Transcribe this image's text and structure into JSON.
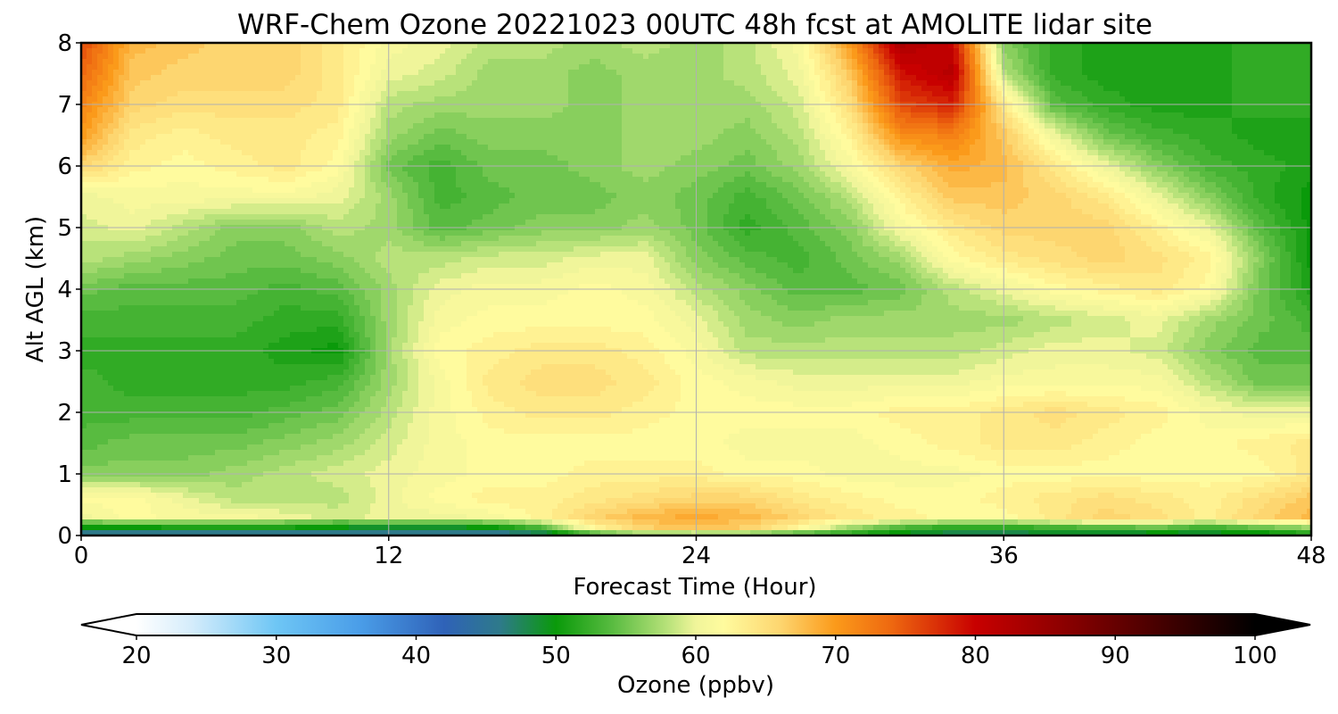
{
  "chart_data": {
    "type": "heatmap",
    "title": "WRF-Chem Ozone  20221023 00UTC 48h fcst at AMOLITE lidar site",
    "xlabel": "Forecast Time (Hour)",
    "ylabel": "Alt AGL (km)",
    "xlim": [
      0,
      48
    ],
    "ylim": [
      0,
      8
    ],
    "x_ticks": [
      0,
      12,
      24,
      36,
      48
    ],
    "y_ticks": [
      0,
      1,
      2,
      3,
      4,
      5,
      6,
      7,
      8
    ],
    "grid": true,
    "x_hours": [
      0,
      2,
      4,
      6,
      8,
      10,
      12,
      14,
      16,
      18,
      20,
      22,
      24,
      26,
      28,
      30,
      32,
      34,
      36,
      38,
      40,
      42,
      44,
      46,
      48
    ],
    "z_levels_km": [
      0.0,
      0.1,
      0.3,
      0.6,
      1.0,
      1.5,
      2.0,
      2.5,
      3.0,
      3.5,
      4.0,
      4.5,
      5.0,
      5.5,
      6.0,
      6.5,
      7.0,
      7.5,
      8.0
    ],
    "ozone_ppbv": [
      [
        44,
        44,
        44,
        44,
        44,
        44,
        45,
        45,
        44,
        45,
        50,
        52,
        52,
        51,
        50,
        50,
        48,
        47,
        47,
        47,
        47,
        47,
        48,
        48,
        50
      ],
      [
        48,
        48,
        49,
        49,
        49,
        48,
        47,
        47,
        48,
        52,
        62,
        66,
        67,
        66,
        62,
        56,
        52,
        50,
        50,
        51,
        52,
        53,
        51,
        53,
        55
      ],
      [
        60,
        62,
        61,
        61,
        60,
        59,
        60,
        60,
        61,
        63,
        66,
        68,
        69,
        68,
        66,
        64,
        63,
        62,
        62,
        64,
        66,
        65,
        63,
        66,
        68
      ],
      [
        62,
        62,
        60,
        58,
        58,
        58,
        60,
        62,
        63,
        63,
        64,
        65,
        66,
        66,
        64,
        63,
        62,
        62,
        63,
        64,
        65,
        64,
        63,
        65,
        67
      ],
      [
        56,
        56,
        56,
        57,
        58,
        59,
        60,
        61,
        62,
        62,
        63,
        63,
        63,
        62,
        62,
        61,
        61,
        61,
        62,
        62,
        62,
        62,
        62,
        62,
        64
      ],
      [
        54,
        55,
        55,
        55,
        56,
        57,
        59,
        61,
        62,
        62,
        62,
        62,
        62,
        61,
        61,
        61,
        62,
        63,
        64,
        64,
        63,
        62,
        62,
        63,
        64
      ],
      [
        53,
        53,
        53,
        53,
        54,
        55,
        58,
        61,
        63,
        64,
        64,
        63,
        62,
        62,
        62,
        62,
        63,
        63,
        64,
        65,
        64,
        63,
        61,
        60,
        60
      ],
      [
        53,
        52,
        52,
        52,
        52,
        53,
        57,
        61,
        64,
        65,
        65,
        64,
        62,
        61,
        60,
        60,
        60,
        60,
        61,
        61,
        61,
        61,
        58,
        55,
        55
      ],
      [
        52,
        52,
        52,
        52,
        51,
        50,
        57,
        62,
        63,
        64,
        64,
        63,
        61,
        58,
        58,
        58,
        58,
        58,
        59,
        60,
        60,
        59,
        56,
        54,
        54
      ],
      [
        53,
        53,
        53,
        53,
        52,
        52,
        57,
        61,
        62,
        62,
        62,
        62,
        60,
        57,
        56,
        57,
        57,
        57,
        57,
        58,
        59,
        60,
        57,
        55,
        53
      ],
      [
        55,
        54,
        54,
        54,
        53,
        54,
        57,
        60,
        61,
        61,
        62,
        61,
        58,
        56,
        54,
        54,
        55,
        58,
        60,
        62,
        63,
        64,
        62,
        55,
        51
      ],
      [
        58,
        57,
        56,
        55,
        55,
        56,
        58,
        58,
        59,
        59,
        60,
        60,
        56,
        54,
        53,
        55,
        57,
        62,
        64,
        65,
        66,
        65,
        63,
        56,
        50
      ],
      [
        59,
        60,
        58,
        56,
        56,
        58,
        57,
        54,
        55,
        56,
        56,
        57,
        55,
        52,
        54,
        56,
        61,
        64,
        66,
        66,
        66,
        63,
        60,
        54,
        50
      ],
      [
        60,
        61,
        61,
        61,
        61,
        60,
        57,
        53,
        54,
        55,
        55,
        56,
        55,
        53,
        55,
        58,
        63,
        67,
        67,
        66,
        64,
        60,
        56,
        52,
        50
      ],
      [
        66,
        63,
        62,
        63,
        64,
        62,
        55,
        53,
        55,
        55,
        56,
        57,
        56,
        55,
        57,
        61,
        66,
        69,
        68,
        64,
        60,
        56,
        53,
        52,
        51
      ],
      [
        70,
        64,
        63,
        64,
        64,
        63,
        57,
        55,
        56,
        56,
        56,
        57,
        57,
        56,
        58,
        63,
        71,
        72,
        67,
        60,
        55,
        53,
        52,
        51,
        51
      ],
      [
        72,
        66,
        65,
        65,
        65,
        64,
        58,
        57,
        57,
        57,
        56,
        57,
        57,
        57,
        59,
        65,
        76,
        78,
        64,
        54,
        52,
        51,
        51,
        52,
        52
      ],
      [
        74,
        67,
        66,
        66,
        66,
        64,
        60,
        59,
        57,
        57,
        56,
        57,
        57,
        58,
        60,
        67,
        79,
        82,
        58,
        52,
        51,
        51,
        51,
        52,
        52
      ],
      [
        76,
        68,
        67,
        66,
        66,
        64,
        61,
        60,
        58,
        58,
        57,
        58,
        57,
        58,
        61,
        70,
        83,
        80,
        56,
        52,
        51,
        51,
        51,
        52,
        52
      ]
    ],
    "colorbar": {
      "label": "Ozone  (ppbv)",
      "min": 20,
      "max": 100,
      "ticks": [
        20,
        30,
        40,
        50,
        60,
        70,
        80,
        90,
        100
      ],
      "extend": "both",
      "stops": [
        {
          "v": 20,
          "c": "#ffffff"
        },
        {
          "v": 24,
          "c": "#d4ecfb"
        },
        {
          "v": 30,
          "c": "#6ec6f5"
        },
        {
          "v": 36,
          "c": "#4a9de8"
        },
        {
          "v": 42,
          "c": "#2f62b8"
        },
        {
          "v": 46,
          "c": "#2e7a8a"
        },
        {
          "v": 50,
          "c": "#0a9a0a"
        },
        {
          "v": 54,
          "c": "#58bb40"
        },
        {
          "v": 58,
          "c": "#b8e27a"
        },
        {
          "v": 60,
          "c": "#f0f59a"
        },
        {
          "v": 62,
          "c": "#fffb9e"
        },
        {
          "v": 66,
          "c": "#fdd670"
        },
        {
          "v": 70,
          "c": "#fb9a1a"
        },
        {
          "v": 74,
          "c": "#ee6810"
        },
        {
          "v": 80,
          "c": "#c80000"
        },
        {
          "v": 86,
          "c": "#8f0000"
        },
        {
          "v": 92,
          "c": "#520000"
        },
        {
          "v": 100,
          "c": "#000000"
        }
      ]
    }
  }
}
